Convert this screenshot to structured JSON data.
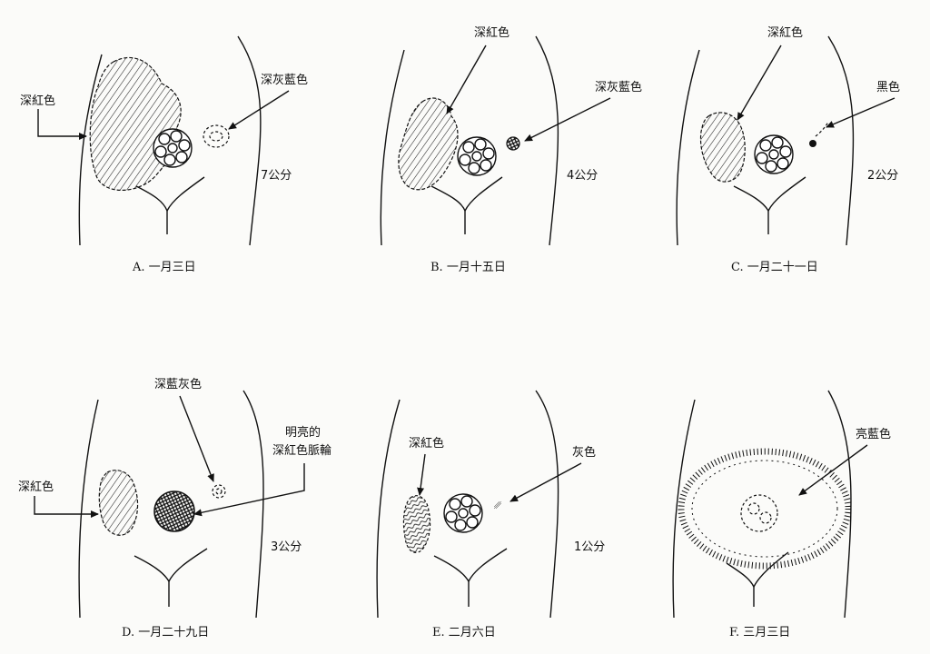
{
  "panels": [
    {
      "id": "A",
      "caption": "A. 一月三日",
      "size": "7公分",
      "labels": [
        "深紅色",
        "深灰藍色"
      ]
    },
    {
      "id": "B",
      "caption": "B. 一月十五日",
      "size": "4公分",
      "labels": [
        "深紅色",
        "深灰藍色"
      ]
    },
    {
      "id": "C",
      "caption": "C. 一月二十一日",
      "size": "2公分",
      "labels": [
        "深紅色",
        "黑色"
      ]
    },
    {
      "id": "D",
      "caption": "D. 一月二十九日",
      "size": "3公分",
      "labels": [
        "深藍灰色",
        "明亮的",
        "深紅色脈輪",
        "深紅色"
      ]
    },
    {
      "id": "E",
      "caption": "E. 二月六日",
      "size": "1公分",
      "labels": [
        "深紅色",
        "灰色"
      ]
    },
    {
      "id": "F",
      "caption": "F. 三月三日",
      "size": "",
      "labels": [
        "亮藍色"
      ]
    }
  ]
}
